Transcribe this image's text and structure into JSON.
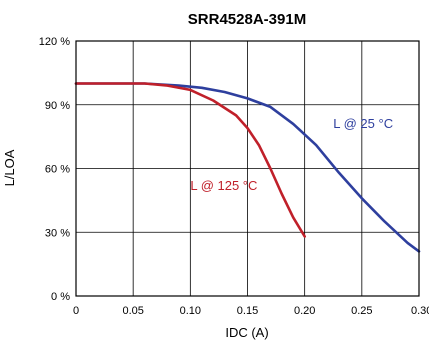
{
  "chart_data": {
    "type": "line",
    "title": "SRR4528A-391M",
    "xlabel": "IDC (A)",
    "ylabel": "L/LOA",
    "xlim": [
      0,
      0.3
    ],
    "ylim": [
      0,
      120
    ],
    "x_ticks": [
      "0",
      "0.05",
      "0.10",
      "0.15",
      "0.20",
      "0.25",
      "0.30"
    ],
    "x_tick_values": [
      0,
      0.05,
      0.1,
      0.15,
      0.2,
      0.25,
      0.3
    ],
    "y_ticks": [
      "0 %",
      "30 %",
      "60 %",
      "90 %",
      "120 %"
    ],
    "y_tick_values": [
      0,
      30,
      60,
      90,
      120
    ],
    "grid": true,
    "series": [
      {
        "name": "L @ 25 °C",
        "color": "#2e3f9e",
        "x": [
          0,
          0.03,
          0.06,
          0.09,
          0.11,
          0.13,
          0.15,
          0.17,
          0.19,
          0.21,
          0.23,
          0.25,
          0.27,
          0.29,
          0.3
        ],
        "y": [
          100,
          100,
          100,
          99,
          98,
          96,
          93,
          89,
          81,
          71,
          58,
          46,
          35,
          25,
          21
        ]
      },
      {
        "name": "L @ 125 °C",
        "color": "#c0202a",
        "x": [
          0,
          0.02,
          0.04,
          0.06,
          0.08,
          0.1,
          0.12,
          0.14,
          0.15,
          0.16,
          0.17,
          0.18,
          0.19,
          0.2
        ],
        "y": [
          100,
          100,
          100,
          100,
          99,
          97,
          92,
          85,
          79,
          71,
          60,
          48,
          37,
          28
        ]
      }
    ],
    "annotations": [
      {
        "text": "L @ 25 °C",
        "x": 0.225,
        "y": 79,
        "color": "#2e3f9e"
      },
      {
        "text": "L @ 125 °C",
        "x": 0.1,
        "y": 50,
        "color": "#c0202a"
      }
    ]
  }
}
